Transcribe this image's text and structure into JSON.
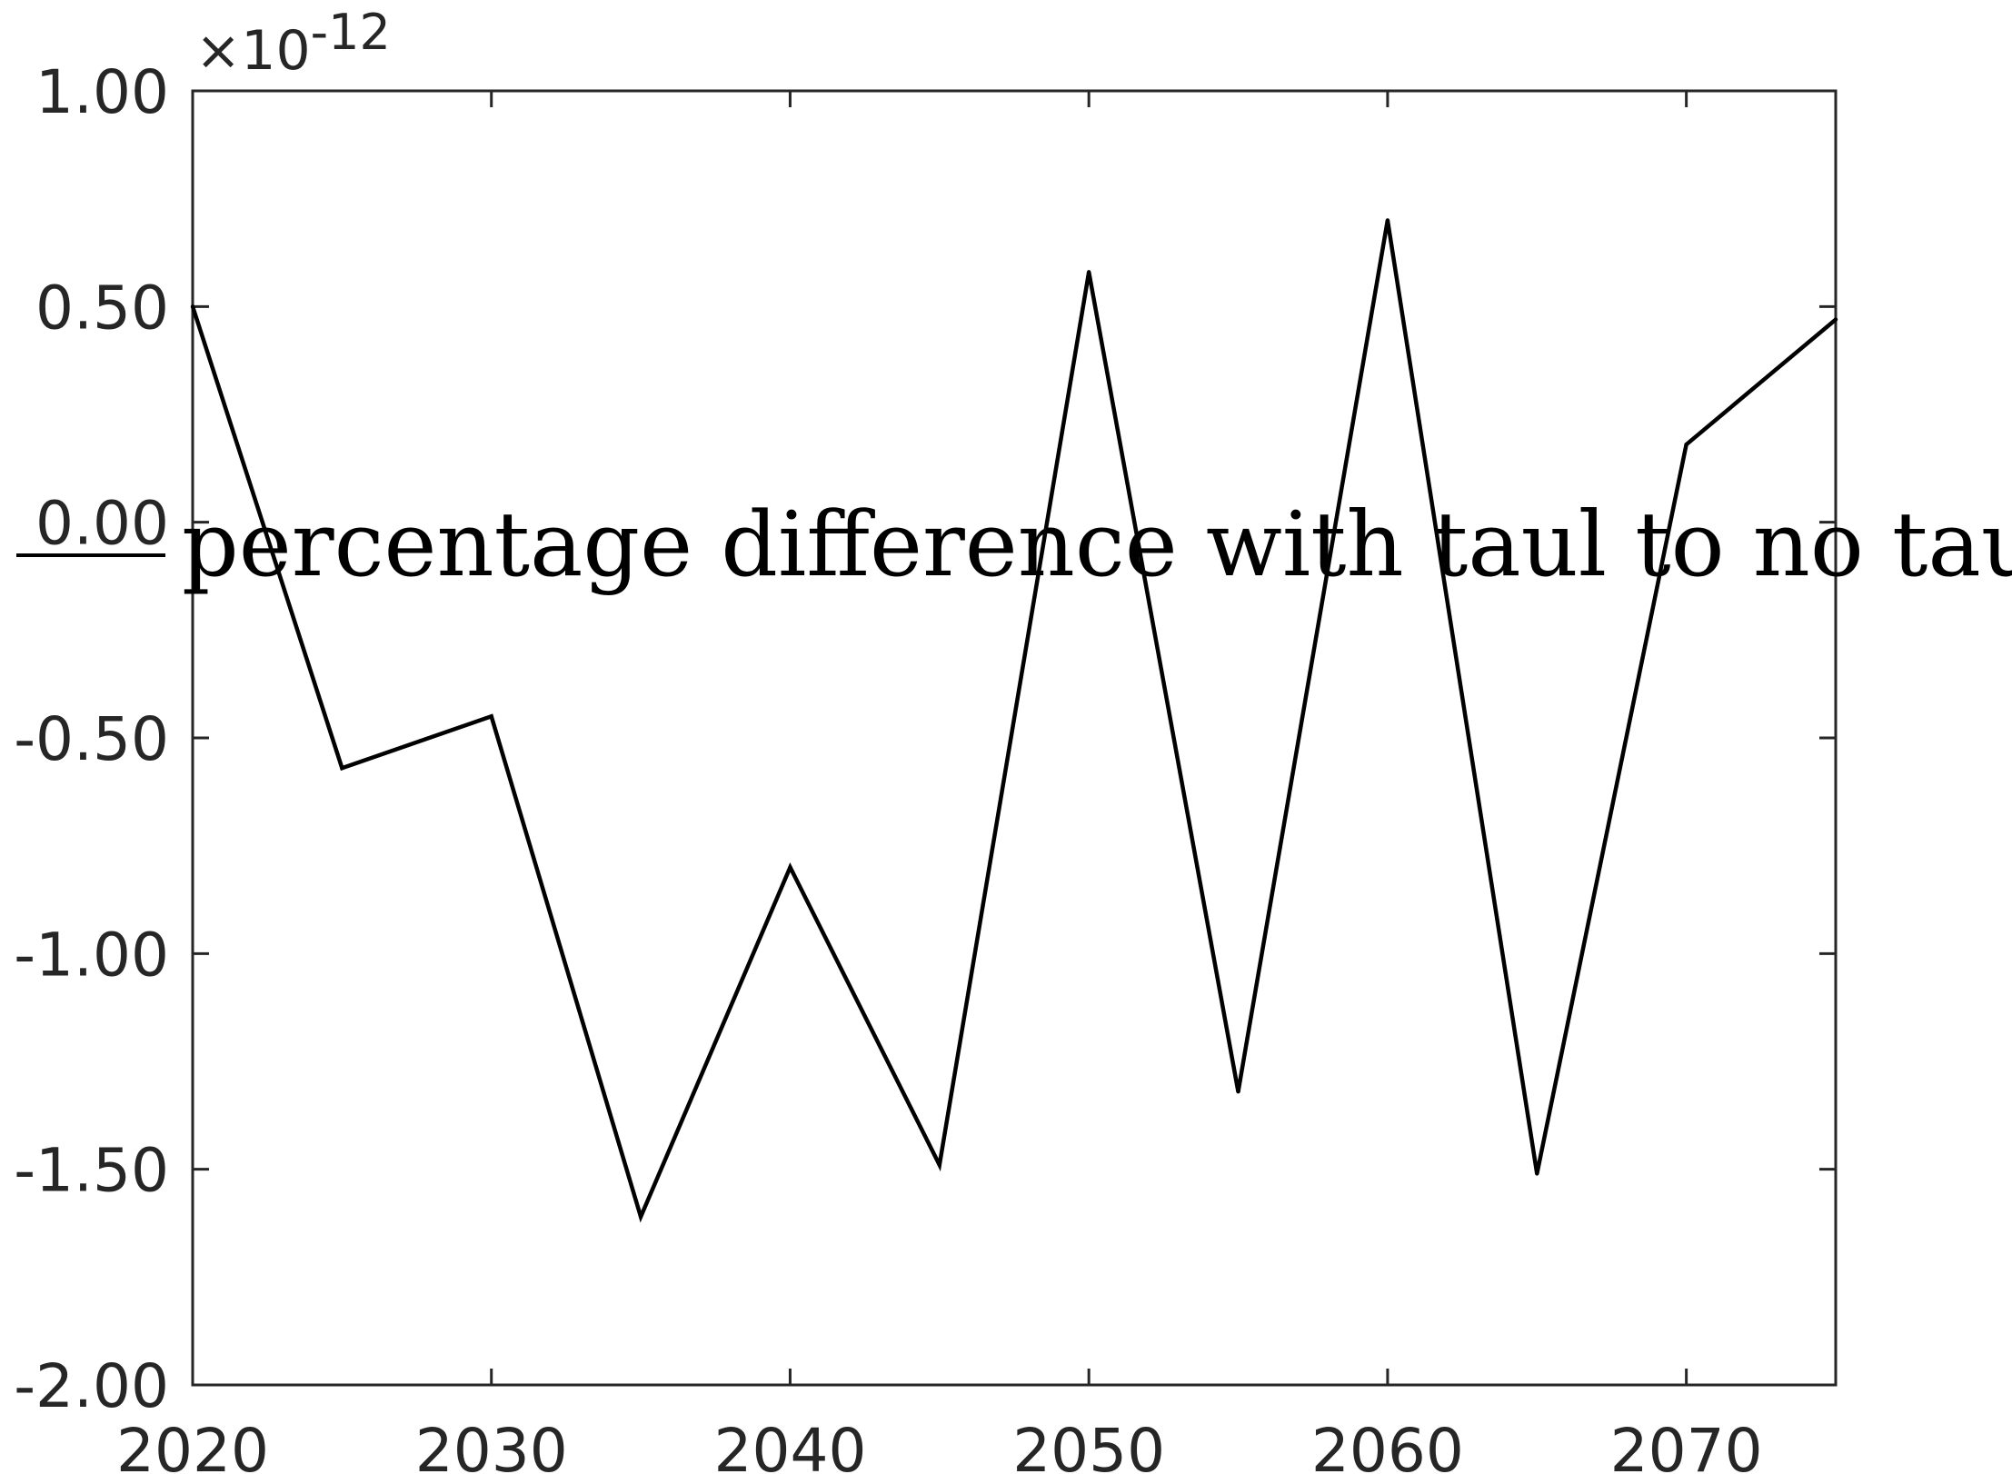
{
  "chart_data": {
    "type": "line",
    "title": "",
    "xlabel": "",
    "ylabel": "",
    "y_exponent_label": {
      "times": "×10",
      "power": "-12"
    },
    "xlim": [
      2020,
      2075
    ],
    "ylim": [
      -2.0,
      1.0
    ],
    "x_ticks": [
      2020,
      2030,
      2040,
      2050,
      2060,
      2070
    ],
    "x_tick_labels": [
      "2020",
      "2030",
      "2040",
      "2050",
      "2060",
      "2070"
    ],
    "y_ticks": [
      1.0,
      0.5,
      0.0,
      -0.5,
      -1.0,
      -1.5,
      -2.0
    ],
    "y_tick_labels": [
      "1.00",
      "0.50",
      "0.00",
      "-0.50",
      "-1.00",
      "-1.50",
      "-2.00"
    ],
    "grid": false,
    "legend_position": "center",
    "series": [
      {
        "name": "percentage difference with taul to no taul",
        "color": "#000000",
        "x": [
          2020,
          2025,
          2030,
          2035,
          2040,
          2045,
          2050,
          2055,
          2060,
          2065,
          2070,
          2075
        ],
        "values": [
          0.5,
          -0.57,
          -0.45,
          -1.61,
          -0.8,
          -1.49,
          0.58,
          -1.32,
          0.7,
          -1.51,
          0.18,
          0.47
        ]
      }
    ]
  }
}
